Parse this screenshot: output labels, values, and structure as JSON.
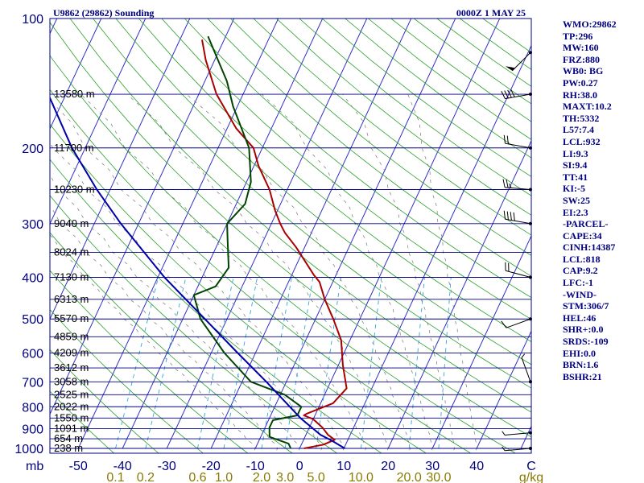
{
  "header": {
    "station": "U9862 (29862) Sounding",
    "time": "0000Z  1 MAY 25"
  },
  "stats": [
    "WMO:29862",
    "TP:296",
    "MW:160",
    "FRZ:880",
    "WB0: BG",
    "PW:0.27",
    "RH:38.0",
    "MAXT:10.2",
    "TH:5332",
    "L57:7.4",
    "LCL:932",
    "LI:9.3",
    "SI:9.4",
    "TT:41",
    "KI:-5",
    "SW:25",
    "EI:2.3",
    "-PARCEL-",
    "CAPE:34",
    "CINH:14387",
    "LCL:818",
    "CAP:9.2",
    "LFC:-1",
    "-WIND-",
    "STM:306/7",
    "HEL:46",
    "SHR+:0.0",
    "SRDS:-109",
    "EHI:0.0",
    "BRN:1.6",
    "BSHR:21"
  ],
  "chart_data": {
    "type": "line",
    "plot": "skew-t log-p",
    "pressure_axis": {
      "range": [
        1000,
        100
      ],
      "ticks": [
        100,
        200,
        300,
        400,
        500,
        600,
        700,
        800,
        900,
        1000
      ],
      "unit": "mb"
    },
    "temperature_axis": {
      "ticks": [
        -50,
        -40,
        -30,
        -20,
        -10,
        0,
        10,
        20,
        30,
        40
      ],
      "tick_labels": [
        "-50",
        "-40",
        "-30",
        "-20",
        "-10",
        "0",
        "10",
        "20",
        "30",
        "40"
      ],
      "unit": "C"
    },
    "mixing_ratio_axis": {
      "ticks": [
        0.1,
        0.2,
        0.6,
        1.0,
        2.0,
        3.0,
        5.0,
        10.0,
        20.0,
        30.0
      ],
      "tick_labels": [
        "0.1",
        "0.2",
        "0.6",
        "1.0",
        "2.0",
        "3.0",
        "5.0",
        "10.0",
        "20.0",
        "30.0"
      ],
      "unit": "g/kg"
    },
    "height_levels": [
      {
        "p": 150,
        "label": "13580 m"
      },
      {
        "p": 200,
        "label": "11700 m"
      },
      {
        "p": 250,
        "label": "10230 m"
      },
      {
        "p": 300,
        "label": "9040 m"
      },
      {
        "p": 350,
        "label": "8024 m"
      },
      {
        "p": 400,
        "label": "7130 m"
      },
      {
        "p": 450,
        "label": "6313 m"
      },
      {
        "p": 500,
        "label": "5570 m"
      },
      {
        "p": 550,
        "label": "4859 m"
      },
      {
        "p": 600,
        "label": "4209 m"
      },
      {
        "p": 650,
        "label": "3612 m"
      },
      {
        "p": 700,
        "label": "3058 m"
      },
      {
        "p": 750,
        "label": "2525 m"
      },
      {
        "p": 800,
        "label": "2022 m"
      },
      {
        "p": 850,
        "label": "1550 m"
      },
      {
        "p": 900,
        "label": "1091 m"
      },
      {
        "p": 950,
        "label": "654 m"
      },
      {
        "p": 1000,
        "label": "238 m"
      }
    ],
    "series": [
      {
        "key": "temperature",
        "color": "#aa0000",
        "points": [
          [
            1000,
            1.0
          ],
          [
            980,
            5.0
          ],
          [
            955,
            7.0
          ],
          [
            930,
            5.0
          ],
          [
            895,
            3.0
          ],
          [
            855,
            0.0
          ],
          [
            838,
            -2.5
          ],
          [
            830,
            -2.0
          ],
          [
            785,
            2.8
          ],
          [
            725,
            4.3
          ],
          [
            640,
            1.0
          ],
          [
            560,
            -2.0
          ],
          [
            500,
            -6.0
          ],
          [
            450,
            -10.0
          ],
          [
            410,
            -13.0
          ],
          [
            395,
            -15.0
          ],
          [
            340,
            -22.0
          ],
          [
            315,
            -26.0
          ],
          [
            300,
            -28.0
          ],
          [
            280,
            -30.5
          ],
          [
            250,
            -34.0
          ],
          [
            220,
            -39.0
          ],
          [
            200,
            -42.0
          ],
          [
            180,
            -48.0
          ],
          [
            150,
            -56.0
          ],
          [
            125,
            -62.0
          ],
          [
            112,
            -65.0
          ]
        ]
      },
      {
        "key": "dewpoint",
        "color": "#004400",
        "points": [
          [
            1000,
            -2.0
          ],
          [
            975,
            -3.0
          ],
          [
            940,
            -8.0
          ],
          [
            895,
            -9.0
          ],
          [
            860,
            -9.0
          ],
          [
            838,
            -4.0
          ],
          [
            800,
            -4.0
          ],
          [
            750,
            -9.0
          ],
          [
            700,
            -18.0
          ],
          [
            600,
            -27.0
          ],
          [
            500,
            -36.0
          ],
          [
            440,
            -40.0
          ],
          [
            420,
            -36.0
          ],
          [
            380,
            -35.0
          ],
          [
            330,
            -38.0
          ],
          [
            300,
            -40.0
          ],
          [
            270,
            -38.0
          ],
          [
            240,
            -39.0
          ],
          [
            200,
            -43.0
          ],
          [
            160,
            -51.0
          ],
          [
            140,
            -55.0
          ],
          [
            110,
            -64.0
          ]
        ]
      },
      {
        "key": "parcel",
        "color": "#0000aa",
        "points": [
          [
            1000,
            10.2
          ],
          [
            960,
            6.5
          ],
          [
            930,
            3.3
          ],
          [
            850,
            -3.0
          ],
          [
            700,
            -14.5
          ],
          [
            600,
            -24.0
          ],
          [
            500,
            -35.0
          ],
          [
            400,
            -48.5
          ],
          [
            300,
            -64.0
          ],
          [
            250,
            -73.0
          ],
          [
            200,
            -83.0
          ],
          [
            150,
            -94.0
          ],
          [
            120,
            -101.0
          ]
        ]
      }
    ],
    "wind_barbs": [
      {
        "p": 1000,
        "dir": 265,
        "spd": 5
      },
      {
        "p": 920,
        "dir": 265,
        "spd": 5
      },
      {
        "p": 700,
        "dir": 340,
        "spd": 5
      },
      {
        "p": 500,
        "dir": 250,
        "spd": 10
      },
      {
        "p": 400,
        "dir": 285,
        "spd": 20
      },
      {
        "p": 300,
        "dir": 280,
        "spd": 40
      },
      {
        "p": 250,
        "dir": 275,
        "spd": 25
      },
      {
        "p": 200,
        "dir": 280,
        "spd": 20
      },
      {
        "p": 150,
        "dir": 260,
        "spd": 40
      },
      {
        "p": 120,
        "dir": 225,
        "spd": 50
      }
    ]
  }
}
